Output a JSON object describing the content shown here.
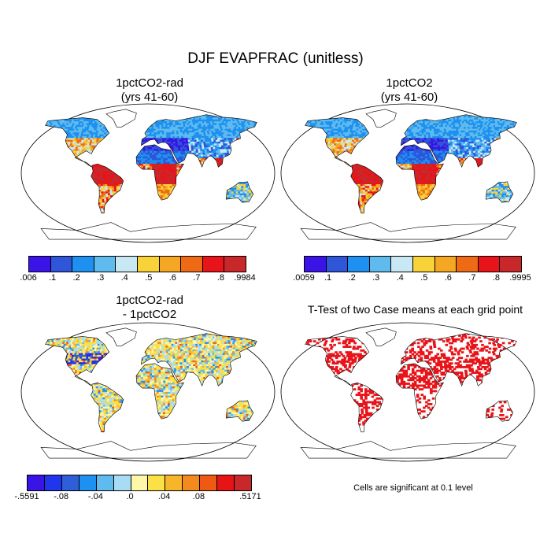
{
  "main_title": "DJF EVAPFRAC (unitless)",
  "panels": {
    "top_left": {
      "title_line1": "1pctCO2-rad",
      "title_line2": "(yrs 41-60)"
    },
    "top_right": {
      "title_line1": "1pctCO2",
      "title_line2": "(yrs 41-60)"
    },
    "bottom_left": {
      "title_line1": "1pctCO2-rad",
      "title_line2": "- 1pctCO2"
    },
    "bottom_right": {
      "title_line1": "T-Test of two Case means at each grid point"
    }
  },
  "colorbars": {
    "top_left": {
      "labels": [
        ".006",
        ".1",
        ".2",
        ".3",
        ".4",
        ".5",
        ".6",
        ".7",
        ".8",
        ".9984"
      ],
      "colors": [
        "#3a14e6",
        "#2f55d8",
        "#1e90f0",
        "#5fbbee",
        "#c8e8f4",
        "#f9d23a",
        "#f5a623",
        "#ee6a14",
        "#e8141a",
        "#c8282a"
      ]
    },
    "top_right": {
      "labels": [
        ".0059",
        ".1",
        ".2",
        ".3",
        ".4",
        ".5",
        ".6",
        ".7",
        ".8",
        ".9995"
      ],
      "colors": [
        "#3a14e6",
        "#2f55d8",
        "#1e90f0",
        "#5fbbee",
        "#c8e8f4",
        "#f9d23a",
        "#f5a623",
        "#ee6a14",
        "#e8141a",
        "#c8282a"
      ]
    },
    "bottom_left": {
      "labels": [
        "-.5591",
        "-.08",
        "-.04",
        ".0",
        ".04",
        ".08",
        ".5171"
      ],
      "colors": [
        "#3a14e6",
        "#2036ee",
        "#2f5fd8",
        "#1e90f0",
        "#5fbbee",
        "#a8dcf4",
        "#fff7a8",
        "#fbe046",
        "#f7b52a",
        "#f28a1e",
        "#ee5a14",
        "#e61414",
        "#c8282a"
      ]
    }
  },
  "map_legend": {
    "significance_note": "Cells are significant at 0.1 level",
    "significant_color": "#e8141a"
  }
}
